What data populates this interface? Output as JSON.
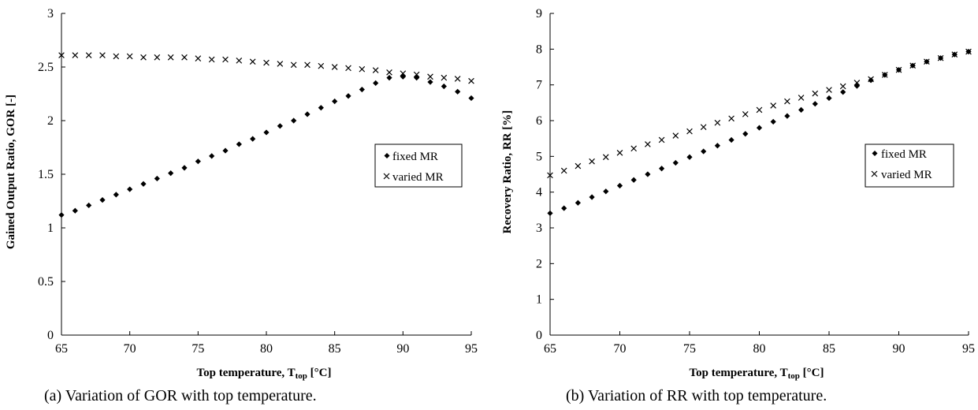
{
  "chart_data": [
    {
      "type": "scatter",
      "id": "gor",
      "caption": "(a) Variation of GOR with top temperature.",
      "xlabel": "Top temperature, T",
      "xlabel_sub": "top",
      "xlabel_unit": " [°C]",
      "ylabel": "Gained Output Ratio, GOR [-]",
      "xlim": [
        65,
        95
      ],
      "ylim": [
        0,
        3
      ],
      "xticks": [
        65,
        70,
        75,
        80,
        85,
        90,
        95
      ],
      "yticks": [
        0,
        0.5,
        1,
        1.5,
        2,
        2.5,
        3
      ],
      "xtick_labels": [
        "65",
        "70",
        "75",
        "80",
        "85",
        "90",
        "95"
      ],
      "ytick_labels": [
        "0",
        "0.5",
        "1",
        "1.5",
        "2",
        "2.5",
        "3"
      ],
      "legend": [
        "fixed MR",
        "varied MR"
      ],
      "legend_position": "right",
      "grid": false,
      "series": [
        {
          "name": "fixed MR",
          "marker": "diamond",
          "x": [
            65,
            66,
            67,
            68,
            69,
            70,
            71,
            72,
            73,
            74,
            75,
            76,
            77,
            78,
            79,
            80,
            81,
            82,
            83,
            84,
            85,
            86,
            87,
            88,
            89,
            90,
            91,
            92,
            93,
            94,
            95
          ],
          "y": [
            1.12,
            1.16,
            1.21,
            1.26,
            1.31,
            1.36,
            1.41,
            1.46,
            1.51,
            1.56,
            1.62,
            1.67,
            1.72,
            1.78,
            1.83,
            1.89,
            1.95,
            2.0,
            2.06,
            2.12,
            2.18,
            2.23,
            2.29,
            2.35,
            2.4,
            2.41,
            2.4,
            2.36,
            2.32,
            2.27,
            2.21
          ]
        },
        {
          "name": "varied MR",
          "marker": "x",
          "x": [
            65,
            66,
            67,
            68,
            69,
            70,
            71,
            72,
            73,
            74,
            75,
            76,
            77,
            78,
            79,
            80,
            81,
            82,
            83,
            84,
            85,
            86,
            87,
            88,
            89,
            90,
            91,
            92,
            93,
            94,
            95
          ],
          "y": [
            2.61,
            2.61,
            2.61,
            2.61,
            2.6,
            2.6,
            2.59,
            2.59,
            2.59,
            2.59,
            2.58,
            2.57,
            2.57,
            2.56,
            2.55,
            2.54,
            2.53,
            2.52,
            2.52,
            2.51,
            2.5,
            2.49,
            2.48,
            2.47,
            2.45,
            2.44,
            2.43,
            2.41,
            2.4,
            2.39,
            2.37
          ]
        }
      ]
    },
    {
      "type": "scatter",
      "id": "rr",
      "caption": "(b) Variation of RR with top temperature.",
      "xlabel": "Top temperature, T",
      "xlabel_sub": "top",
      "xlabel_unit": " [°C]",
      "ylabel": "Recovery Ratio, RR [%]",
      "xlim": [
        65,
        95
      ],
      "ylim": [
        0,
        9
      ],
      "xticks": [
        65,
        70,
        75,
        80,
        85,
        90,
        95
      ],
      "yticks": [
        0,
        1,
        2,
        3,
        4,
        5,
        6,
        7,
        8,
        9
      ],
      "xtick_labels": [
        "65",
        "70",
        "75",
        "80",
        "85",
        "90",
        "95"
      ],
      "ytick_labels": [
        "0",
        "1",
        "2",
        "3",
        "4",
        "5",
        "6",
        "7",
        "8",
        "9"
      ],
      "legend": [
        "fixed MR",
        "varied MR"
      ],
      "legend_position": "right",
      "grid": false,
      "series": [
        {
          "name": "fixed MR",
          "marker": "diamond",
          "x": [
            65,
            66,
            67,
            68,
            69,
            70,
            71,
            72,
            73,
            74,
            75,
            76,
            77,
            78,
            79,
            80,
            81,
            82,
            83,
            84,
            85,
            86,
            87,
            88,
            89,
            90,
            91,
            92,
            93,
            94,
            95
          ],
          "y": [
            3.41,
            3.55,
            3.7,
            3.86,
            4.02,
            4.18,
            4.34,
            4.5,
            4.66,
            4.82,
            4.98,
            5.14,
            5.3,
            5.46,
            5.63,
            5.8,
            5.97,
            6.13,
            6.3,
            6.47,
            6.63,
            6.8,
            6.97,
            7.13,
            7.28,
            7.42,
            7.54,
            7.65,
            7.75,
            7.85,
            7.93
          ]
        },
        {
          "name": "varied MR",
          "marker": "x",
          "x": [
            65,
            66,
            67,
            68,
            69,
            70,
            71,
            72,
            73,
            74,
            75,
            76,
            77,
            78,
            79,
            80,
            81,
            82,
            83,
            84,
            85,
            86,
            87,
            88,
            89,
            90,
            91,
            92,
            93,
            94,
            95
          ],
          "y": [
            4.47,
            4.6,
            4.73,
            4.86,
            4.98,
            5.1,
            5.22,
            5.34,
            5.46,
            5.58,
            5.7,
            5.82,
            5.94,
            6.06,
            6.18,
            6.3,
            6.42,
            6.54,
            6.64,
            6.76,
            6.86,
            6.96,
            7.06,
            7.16,
            7.28,
            7.42,
            7.54,
            7.65,
            7.75,
            7.85,
            7.93
          ]
        }
      ]
    }
  ]
}
